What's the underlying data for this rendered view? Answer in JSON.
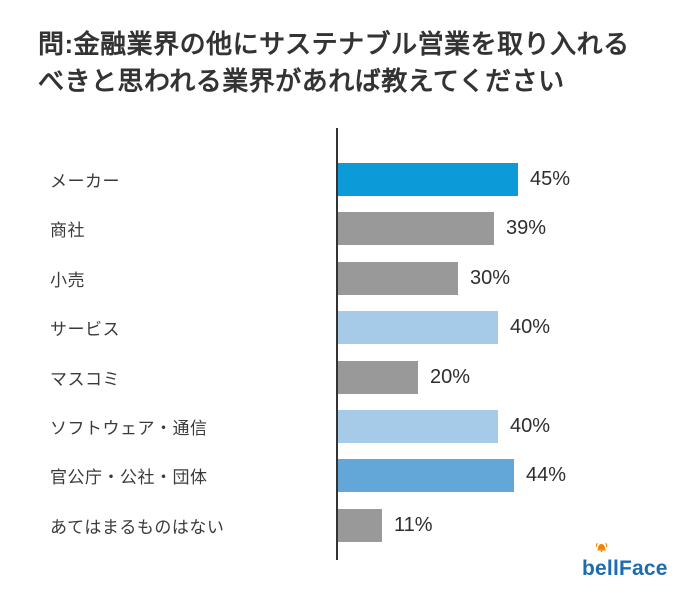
{
  "header": {
    "title_line1": "問:金融業界の他にサステナブル営業を取り入れる",
    "title_line2": "べきと思われる業界があれば教えてください"
  },
  "chart_data": {
    "type": "bar",
    "orientation": "horizontal",
    "title": "問:金融業界の他にサステナブル営業を取り入れるべきと思われる業界があれば教えてください",
    "categories": [
      "メーカー",
      "商社",
      "小売",
      "サービス",
      "マスコミ",
      "ソフトウェア・通信",
      "官公庁・公社・団体",
      "あてはまるものはない"
    ],
    "values": [
      45,
      39,
      30,
      40,
      20,
      40,
      44,
      11
    ],
    "unit": "%",
    "value_labels": [
      "45%",
      "39%",
      "30%",
      "40%",
      "20%",
      "40%",
      "44%",
      "11%"
    ],
    "bar_color_roles": [
      "highlight",
      "gray",
      "gray",
      "light_blue",
      "gray",
      "light_blue",
      "medium_blue",
      "gray"
    ],
    "xlim": [
      0,
      50
    ],
    "grid": "off",
    "legend": "none",
    "axis_style": "single vertical baseline, no tick labels, value labels at bar ends"
  },
  "colors": {
    "highlight": "#0D9AD8",
    "gray": "#999999",
    "light_blue": "#A6CBE9",
    "medium_blue": "#63A7D8",
    "axis": "#333333",
    "text": "#333333",
    "logo_blue": "#1C6CB0",
    "logo_orange": "#F08300"
  },
  "footer": {
    "logo": {
      "full": "bellFace",
      "part1": "b",
      "part2": "e",
      "part3": "llFace"
    }
  }
}
